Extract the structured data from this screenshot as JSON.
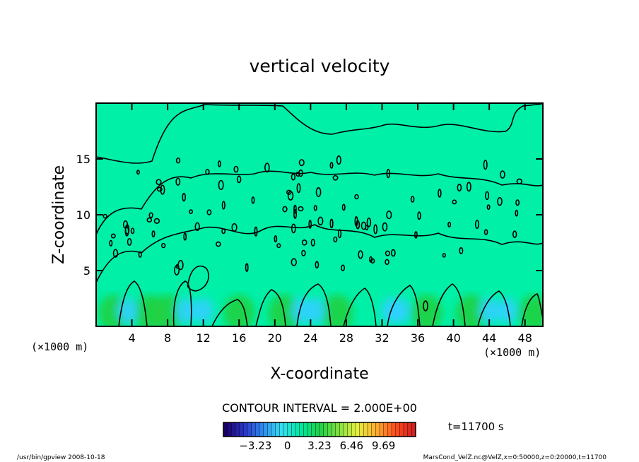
{
  "chart_data": {
    "type": "heatmap",
    "title": "vertical velocity",
    "xlabel": "X-coordinate",
    "ylabel": "Z-coordinate",
    "x_unit_left": "(×1000 m)",
    "x_unit_right": "(×1000 m)",
    "xlim": [
      0,
      50
    ],
    "ylim": [
      0,
      20
    ],
    "x_ticks": [
      4,
      8,
      12,
      16,
      20,
      24,
      28,
      32,
      36,
      40,
      44,
      48
    ],
    "y_ticks": [
      5,
      10,
      15
    ],
    "contour_interval_label": "CONTOUR INTERVAL = 2.000E+00",
    "time_label": "t=11700 s",
    "colorbar": {
      "range": [
        -6.46,
        12.92
      ],
      "ticks": [
        -3.23,
        0,
        3.23,
        6.46,
        9.69
      ],
      "tick_labels": [
        "−3.23",
        "0",
        "3.23",
        "6.46",
        "9.69"
      ],
      "colors": [
        "#1a0066",
        "#2a34c8",
        "#2f8cf0",
        "#35e0f0",
        "#00e8a0",
        "#1ed048",
        "#7ee040",
        "#e6f040",
        "#ffb030",
        "#ff5020",
        "#d42020"
      ]
    },
    "background_color": "#00f0a8",
    "low_level_color_min": "#30d0ff",
    "low_level_color_max": "#20d040",
    "updraft_columns_x": [
      2,
      6,
      8,
      16,
      21,
      27,
      37,
      42,
      49
    ],
    "downdraft_columns_x": [
      3.5,
      10,
      12,
      23,
      24.5,
      33,
      34,
      44,
      46
    ]
  },
  "footer": {
    "left": "/usr/bin/gpview   2008-10-18",
    "right": "MarsCond_VelZ.nc@VelZ,x=0:50000,z=0:20000,t=11700"
  }
}
